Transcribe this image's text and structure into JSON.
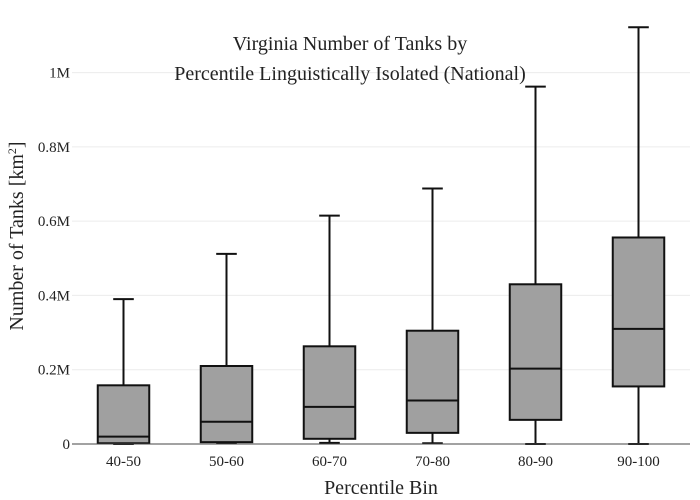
{
  "chart_data": {
    "type": "box",
    "title_lines": [
      "Virginia Number of Tanks by",
      "Percentile Linguistically Isolated (National)"
    ],
    "xlabel": "Percentile Bin",
    "ylabel_main": "Number of Tanks  [km",
    "ylabel_sup": "2",
    "ylabel_close": "]",
    "ylim": [
      0,
      1120000
    ],
    "y_ticks": [
      {
        "value": 0,
        "label": "0"
      },
      {
        "value": 200000,
        "label": "0.2M"
      },
      {
        "value": 400000,
        "label": "0.4M"
      },
      {
        "value": 600000,
        "label": "0.6M"
      },
      {
        "value": 800000,
        "label": "0.8M"
      },
      {
        "value": 1000000,
        "label": "1M"
      }
    ],
    "grid": true,
    "box_color": "#a0a0a0",
    "line_color": "#111111",
    "categories": [
      "40-50",
      "50-60",
      "60-70",
      "70-80",
      "80-90",
      "90-100"
    ],
    "boxes": [
      {
        "label": "40-50",
        "min": 0,
        "q1": 2000,
        "median": 20000,
        "q3": 158000,
        "max": 390000
      },
      {
        "label": "50-60",
        "min": 2000,
        "q1": 5000,
        "median": 60000,
        "q3": 210000,
        "max": 512000
      },
      {
        "label": "60-70",
        "min": 3000,
        "q1": 14000,
        "median": 100000,
        "q3": 263000,
        "max": 615000
      },
      {
        "label": "70-80",
        "min": 2000,
        "q1": 30000,
        "median": 117000,
        "q3": 305000,
        "max": 688000
      },
      {
        "label": "80-90",
        "min": 0,
        "q1": 65000,
        "median": 203000,
        "q3": 430000,
        "max": 962000
      },
      {
        "label": "90-100",
        "min": 0,
        "q1": 155000,
        "median": 310000,
        "q3": 556000,
        "max": 1122000
      }
    ]
  }
}
